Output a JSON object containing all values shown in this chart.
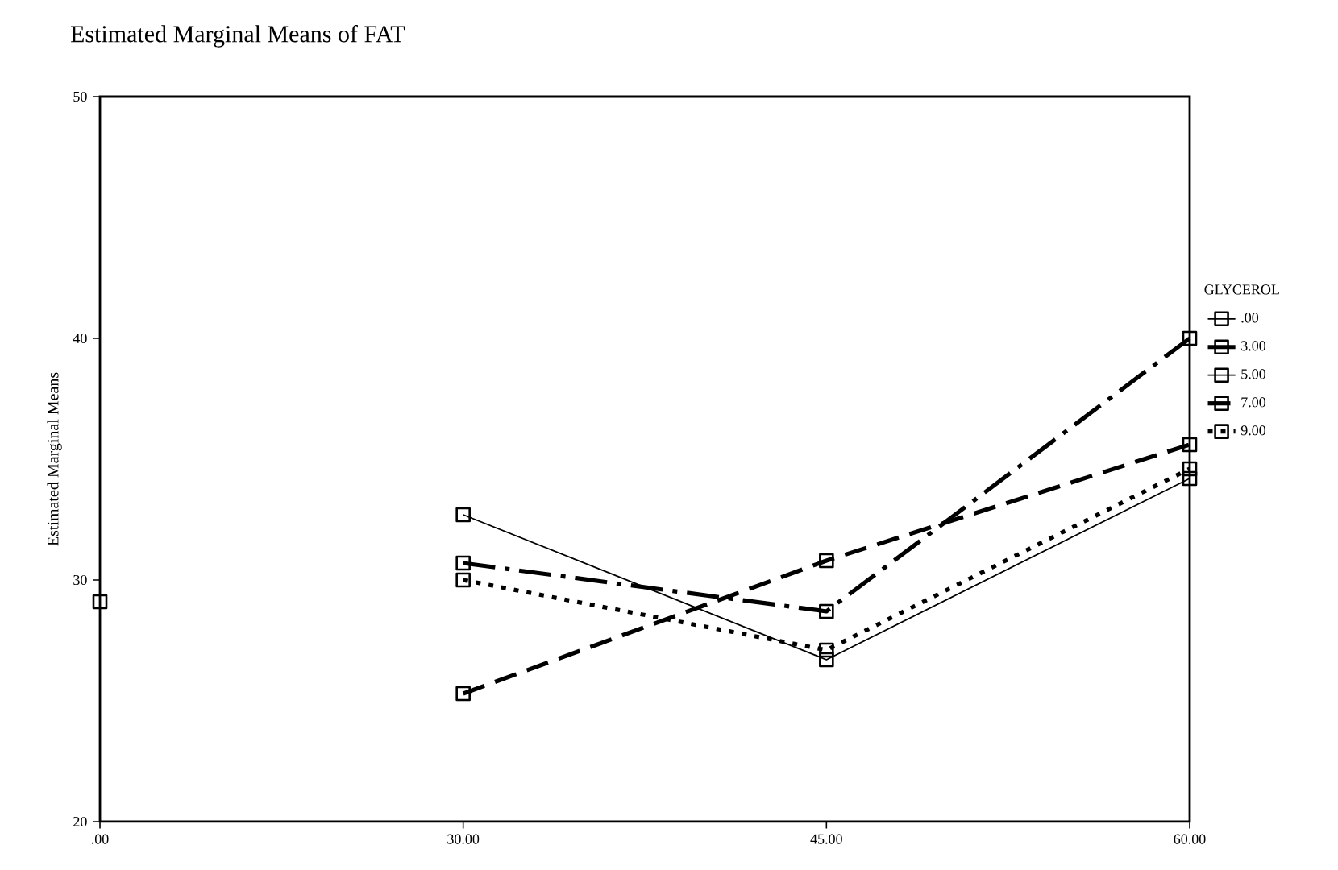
{
  "chart_data": {
    "type": "line",
    "title": "Estimated Marginal Means of FAT",
    "ylabel": "Estimated Marginal Means",
    "legend_title": "GLYCEROL",
    "categories": [
      ".00",
      "30.00",
      "45.00",
      "60.00"
    ],
    "series": [
      {
        "name": ".00",
        "color": "#000000",
        "line_style": "solid",
        "values": [
          29.1,
          null,
          null,
          null
        ]
      },
      {
        "name": "3.00",
        "color": "#000000",
        "line_style": "dashdot",
        "values": [
          null,
          30.7,
          28.7,
          40.0
        ]
      },
      {
        "name": "5.00",
        "color": "#000000",
        "line_style": "solid",
        "values": [
          null,
          32.7,
          26.7,
          34.2
        ]
      },
      {
        "name": "7.00",
        "color": "#000000",
        "line_style": "dashed",
        "values": [
          null,
          25.3,
          30.8,
          35.6
        ]
      },
      {
        "name": "9.00",
        "color": "#000000",
        "line_style": "dotted",
        "values": [
          null,
          30.0,
          27.1,
          34.6
        ]
      }
    ],
    "ylim": [
      20,
      50
    ],
    "yticks": [
      20,
      30,
      40,
      50
    ],
    "marker": "square",
    "legend": "right",
    "grid": false
  }
}
